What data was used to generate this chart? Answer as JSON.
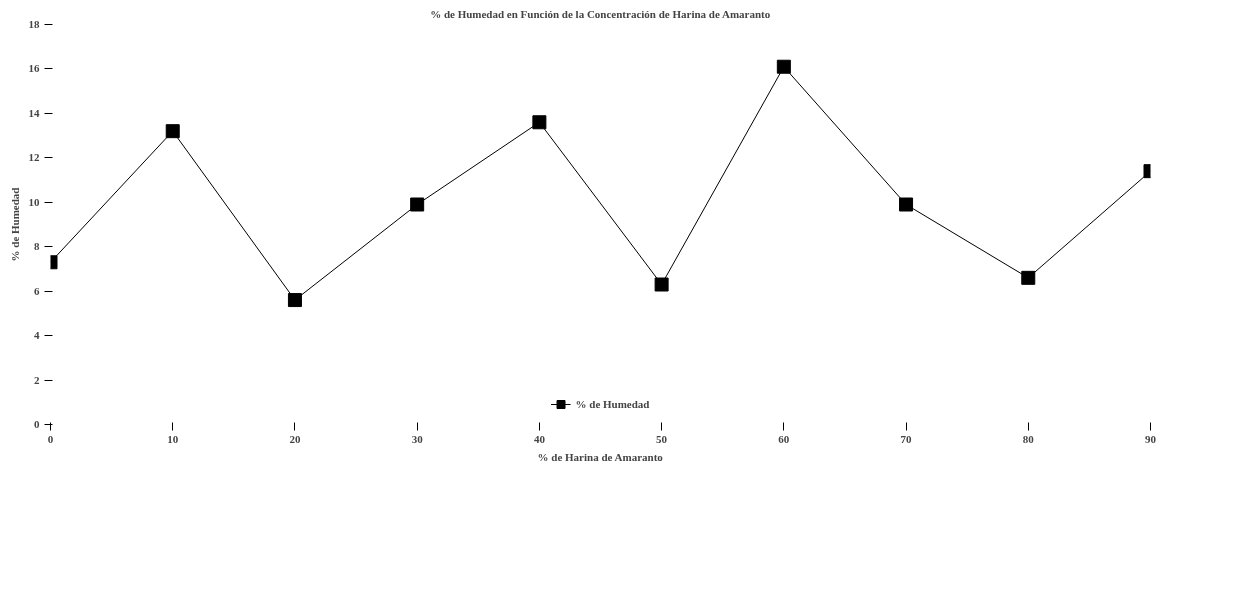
{
  "chart_data": {
    "type": "line",
    "title": "% de Humedad en Función de la Concentración de Harina de Amaranto",
    "xlabel": "% de Harina de Amaranto",
    "ylabel": "% de Humedad",
    "x": [
      0,
      10,
      20,
      30,
      40,
      50,
      60,
      70,
      80,
      90
    ],
    "series": [
      {
        "name": "% de Humedad",
        "color": "#000000",
        "values": [
          7.3,
          13.2,
          5.6,
          9.9,
          13.6,
          6.3,
          16.1,
          9.9,
          6.6,
          11.4
        ]
      }
    ],
    "xlim": [
      0,
      90
    ],
    "xticks": [
      0,
      10,
      20,
      30,
      40,
      50,
      60,
      70,
      80,
      90
    ],
    "ylim": [
      0,
      18
    ],
    "yticks": [
      0,
      2,
      4,
      6,
      8,
      10,
      12,
      14,
      16,
      18
    ],
    "grid": false,
    "legend": "bottom",
    "marker": "square",
    "line_style": "solid"
  }
}
